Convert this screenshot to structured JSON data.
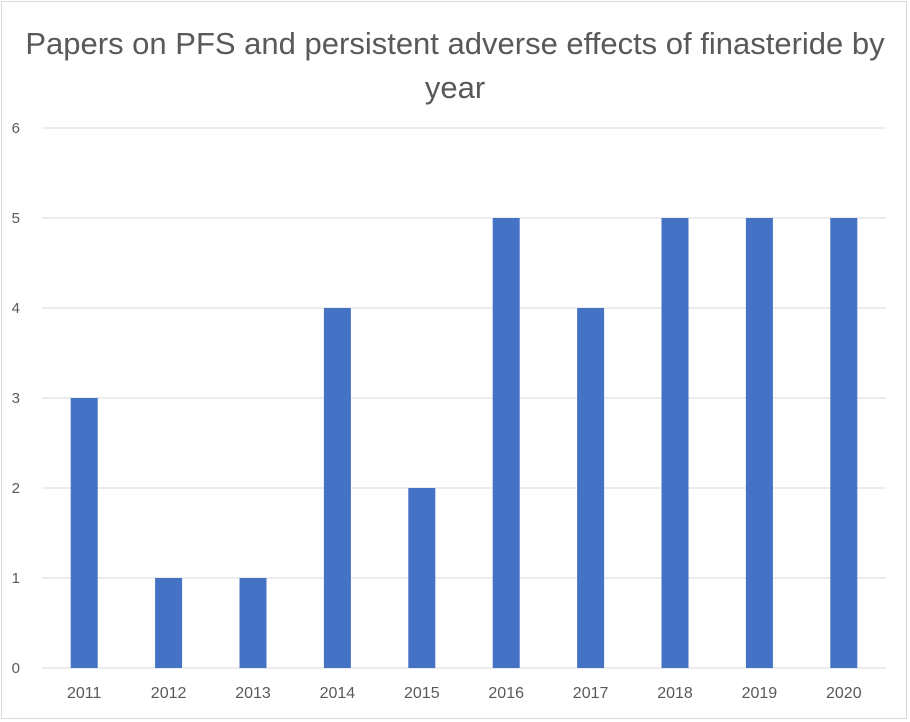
{
  "chart_data": {
    "type": "bar",
    "title": "Papers on PFS and persistent adverse effects of finasteride by year",
    "xlabel": "",
    "ylabel": "",
    "categories": [
      "2011",
      "2012",
      "2013",
      "2014",
      "2015",
      "2016",
      "2017",
      "2018",
      "2019",
      "2020"
    ],
    "series": [
      {
        "values": [
          3,
          1,
          1,
          4,
          2,
          5,
          4,
          5,
          5,
          5
        ],
        "color": "#4472c4"
      }
    ],
    "ylim": [
      0,
      6
    ],
    "yticks": [
      "0",
      "1",
      "2",
      "3",
      "4",
      "5",
      "6"
    ],
    "grid": true,
    "gridline_color": "#d9d9d9",
    "legend": "none"
  }
}
